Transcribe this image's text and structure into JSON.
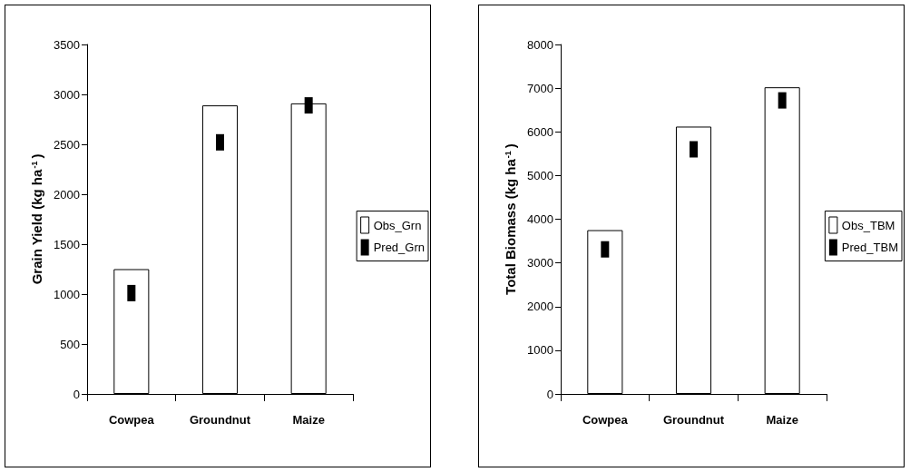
{
  "chart_data": [
    {
      "type": "bar",
      "categories": [
        "Cowpea",
        "Groundnut",
        "Maize"
      ],
      "ylabel": "Grain Yield (kg ha$^{-1}$)",
      "ylim": [
        0,
        3500
      ],
      "yticks": [
        0,
        500,
        1000,
        1500,
        2000,
        2500,
        3000,
        3500
      ],
      "grid": false,
      "legend": "right",
      "marker": "square",
      "series": [
        {
          "name": "Obs_Grn",
          "color": "#ffffff",
          "values": [
            1250,
            2890,
            2910
          ]
        },
        {
          "name": "Pred_Grn",
          "type": "scatter",
          "color": "#000000",
          "x": [
            "Cowpea",
            "Groundnut",
            "Maize"
          ],
          "values": [
            1010,
            2520,
            2890
          ]
        }
      ]
    },
    {
      "type": "bar",
      "categories": [
        "Cowpea",
        "Groundnut",
        "Maize"
      ],
      "ylabel": "Total Biomass (kg ha$^{-1}$)",
      "ylim": [
        0,
        8000
      ],
      "yticks": [
        0,
        1000,
        2000,
        3000,
        4000,
        5000,
        6000,
        7000,
        8000
      ],
      "grid": false,
      "legend": "right",
      "marker": "square",
      "series": [
        {
          "name": "Obs_TBM",
          "color": "#ffffff",
          "values": [
            3750,
            6120,
            7020
          ]
        },
        {
          "name": "Pred_TBM",
          "type": "scatter",
          "color": "#000000",
          "x": [
            "Cowpea",
            "Groundnut",
            "Maize"
          ],
          "values": [
            3310,
            5600,
            6720
          ]
        }
      ]
    }
  ]
}
